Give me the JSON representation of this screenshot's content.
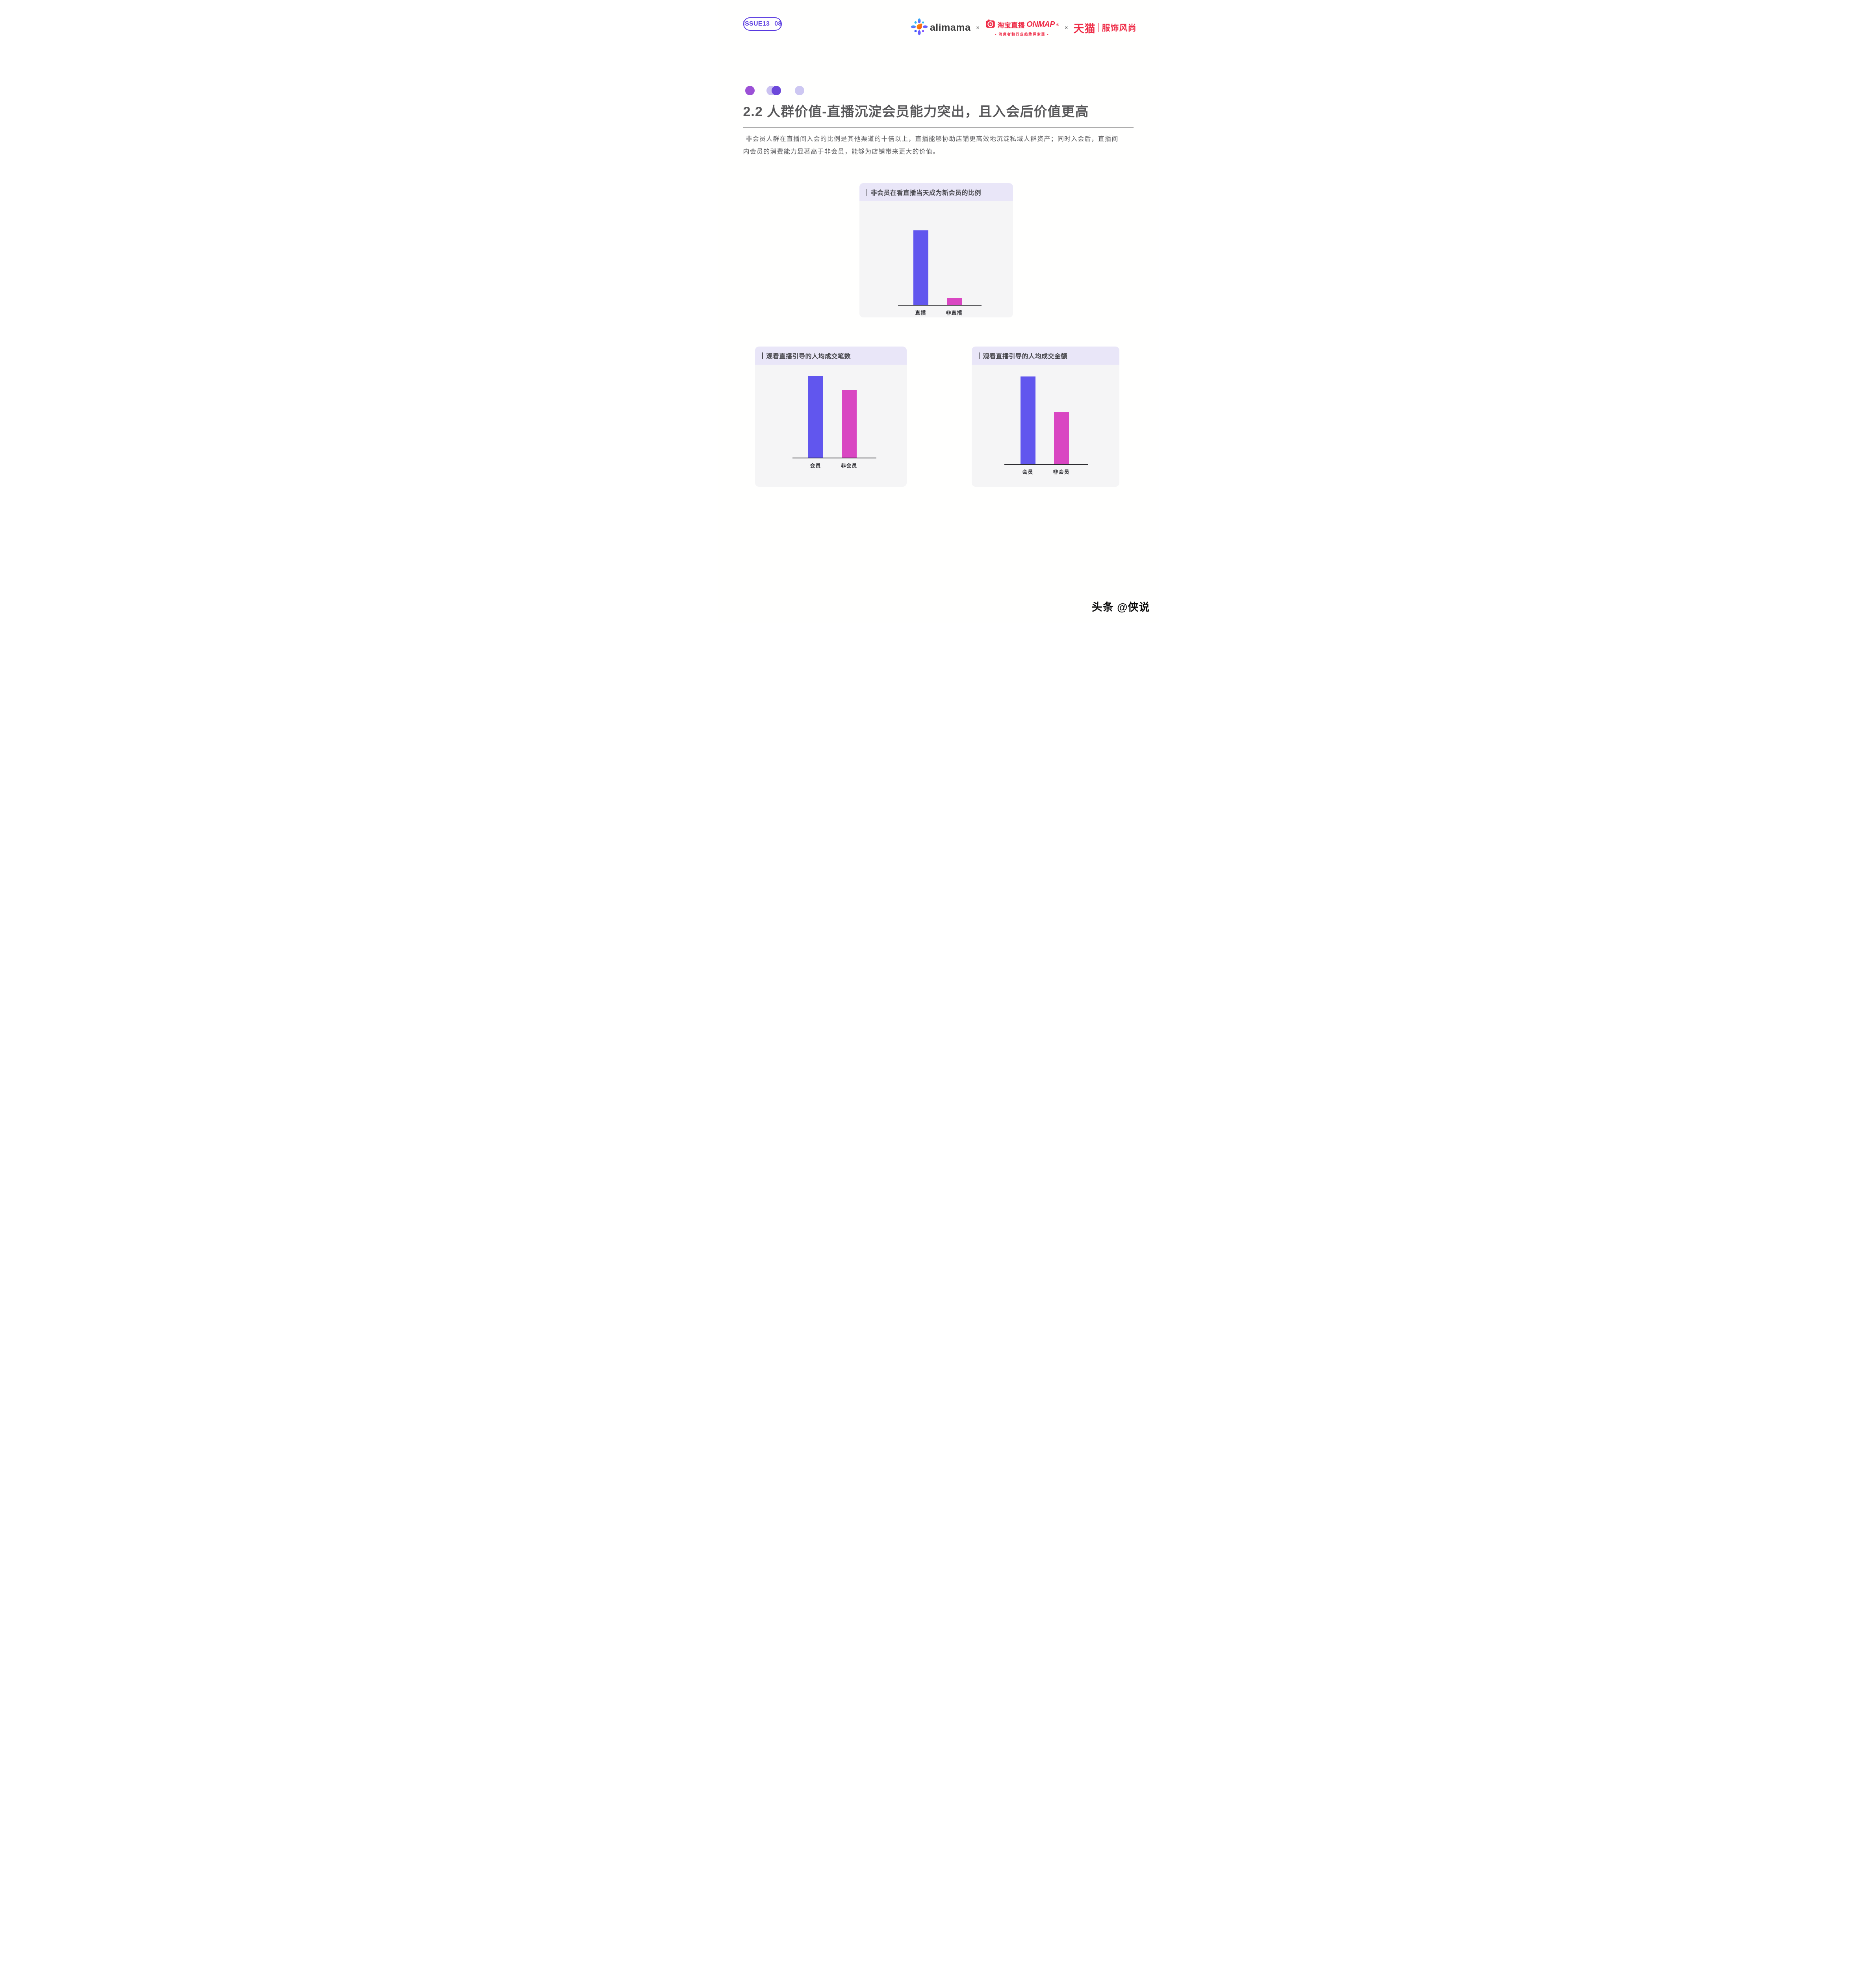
{
  "badge": {
    "issue": "ISSUE13",
    "number": "08"
  },
  "logos": {
    "alimama": "alimama",
    "multiply_1": "×",
    "taobao_live_name": "淘宝直播",
    "onmap": "ONMAP",
    "registered": "®",
    "tagline": "- 消费者和行业趋势探索器 -",
    "multiply_2": "×",
    "tmall": "天猫",
    "tmall_channel": "服饰风尚"
  },
  "section": {
    "title": "2.2 人群价值-直播沉淀会员能力突出，且入会后价值更高",
    "desc_line1": "非会员人群在直播间入会的比例是其他渠道的十倍以上，直播能够协助店铺更高效地沉淀私域人群资产；同时入会后，直播间",
    "desc_line2": "内会员的消费能力显著高于非会员，能够为店铺带来更大的价值。"
  },
  "chart_data": [
    {
      "type": "bar",
      "title": "非会员在看直播当天成为新会员的比例",
      "categories": [
        "直播",
        "非直播"
      ],
      "values_relative": [
        1.0,
        0.09
      ],
      "bar_colors": [
        "#6156ee",
        "#d946c2"
      ],
      "ylabel": "",
      "grid": false,
      "legend": false
    },
    {
      "type": "bar",
      "title": "观看直播引导的人均成交笔数",
      "categories": [
        "会员",
        "非会员"
      ],
      "values_relative": [
        1.0,
        0.83
      ],
      "bar_colors": [
        "#6156ee",
        "#d946c2"
      ],
      "ylabel": "",
      "grid": false,
      "legend": false
    },
    {
      "type": "bar",
      "title": "观看直播引导的人均成交金额",
      "categories": [
        "会员",
        "非会员"
      ],
      "values_relative": [
        1.0,
        0.59
      ],
      "bar_colors": [
        "#6156ee",
        "#d946c2"
      ],
      "ylabel": "",
      "grid": false,
      "legend": false
    }
  ],
  "watermark": "头条 @侠说",
  "colors": {
    "accent_purple": "#5839e0",
    "bar_purple": "#6156ee",
    "bar_pink": "#d946c2",
    "logo_red": "#ee2b46",
    "card_header_bg": "#e9e6f8",
    "card_body_bg": "#f5f5f6",
    "title_gray": "#58585a"
  }
}
